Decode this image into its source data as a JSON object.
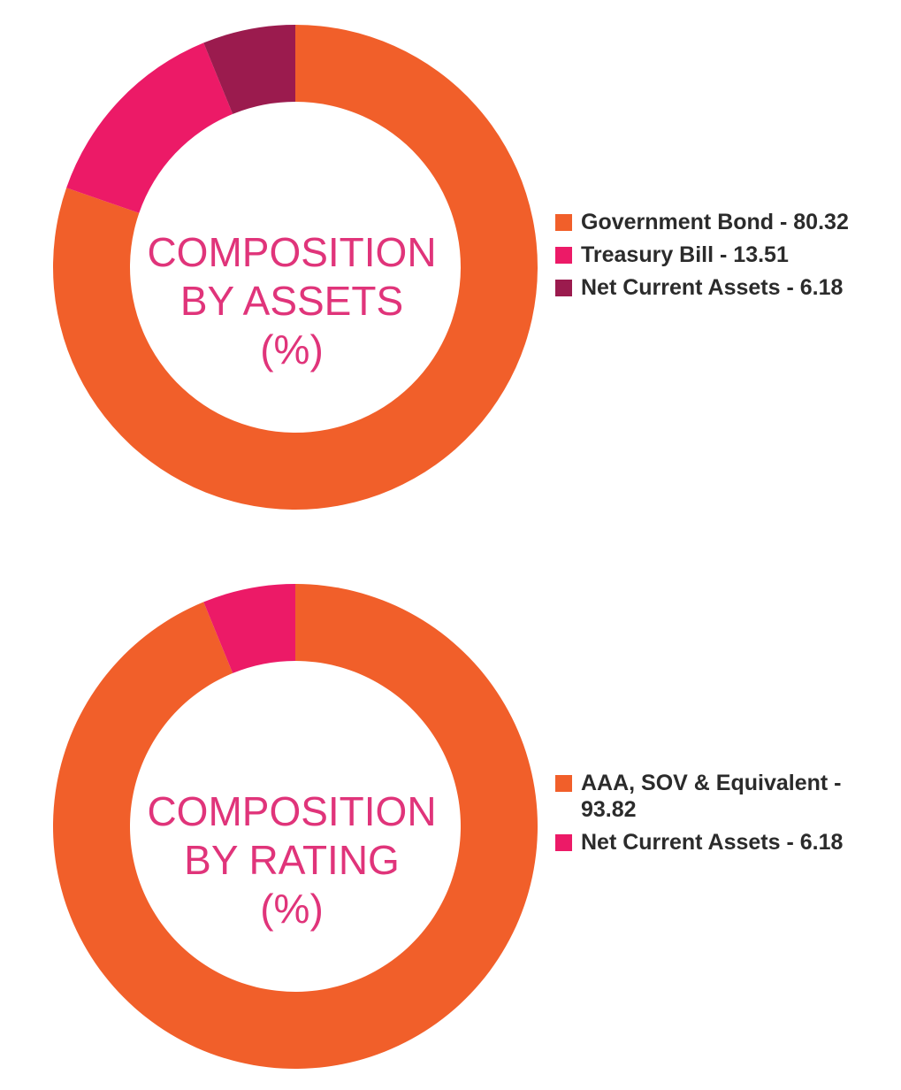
{
  "chart_data": [
    {
      "type": "pie",
      "title_lines": [
        "COMPOSITION",
        "BY ASSETS",
        "(%)"
      ],
      "categories": [
        "Government Bond",
        "Treasury Bill",
        "Net Current Assets"
      ],
      "values": [
        80.32,
        13.51,
        6.18
      ],
      "colors": [
        "#f15f2a",
        "#ec1a67",
        "#9b1b4e"
      ],
      "legend": [
        "Government Bond - 80.32",
        "Treasury Bill - 13.51",
        "Net Current Assets - 6.18"
      ],
      "legend_position": "right"
    },
    {
      "type": "pie",
      "title_lines": [
        "COMPOSITION",
        "BY RATING",
        "(%)"
      ],
      "categories": [
        "AAA, SOV & Equivalent",
        "Net Current Assets"
      ],
      "values": [
        93.82,
        6.18
      ],
      "colors": [
        "#f15f2a",
        "#ec1a67"
      ],
      "legend": [
        "AAA, SOV & Equivalent - 93.82",
        "Net Current Assets - 6.18"
      ],
      "legend_position": "right"
    }
  ]
}
